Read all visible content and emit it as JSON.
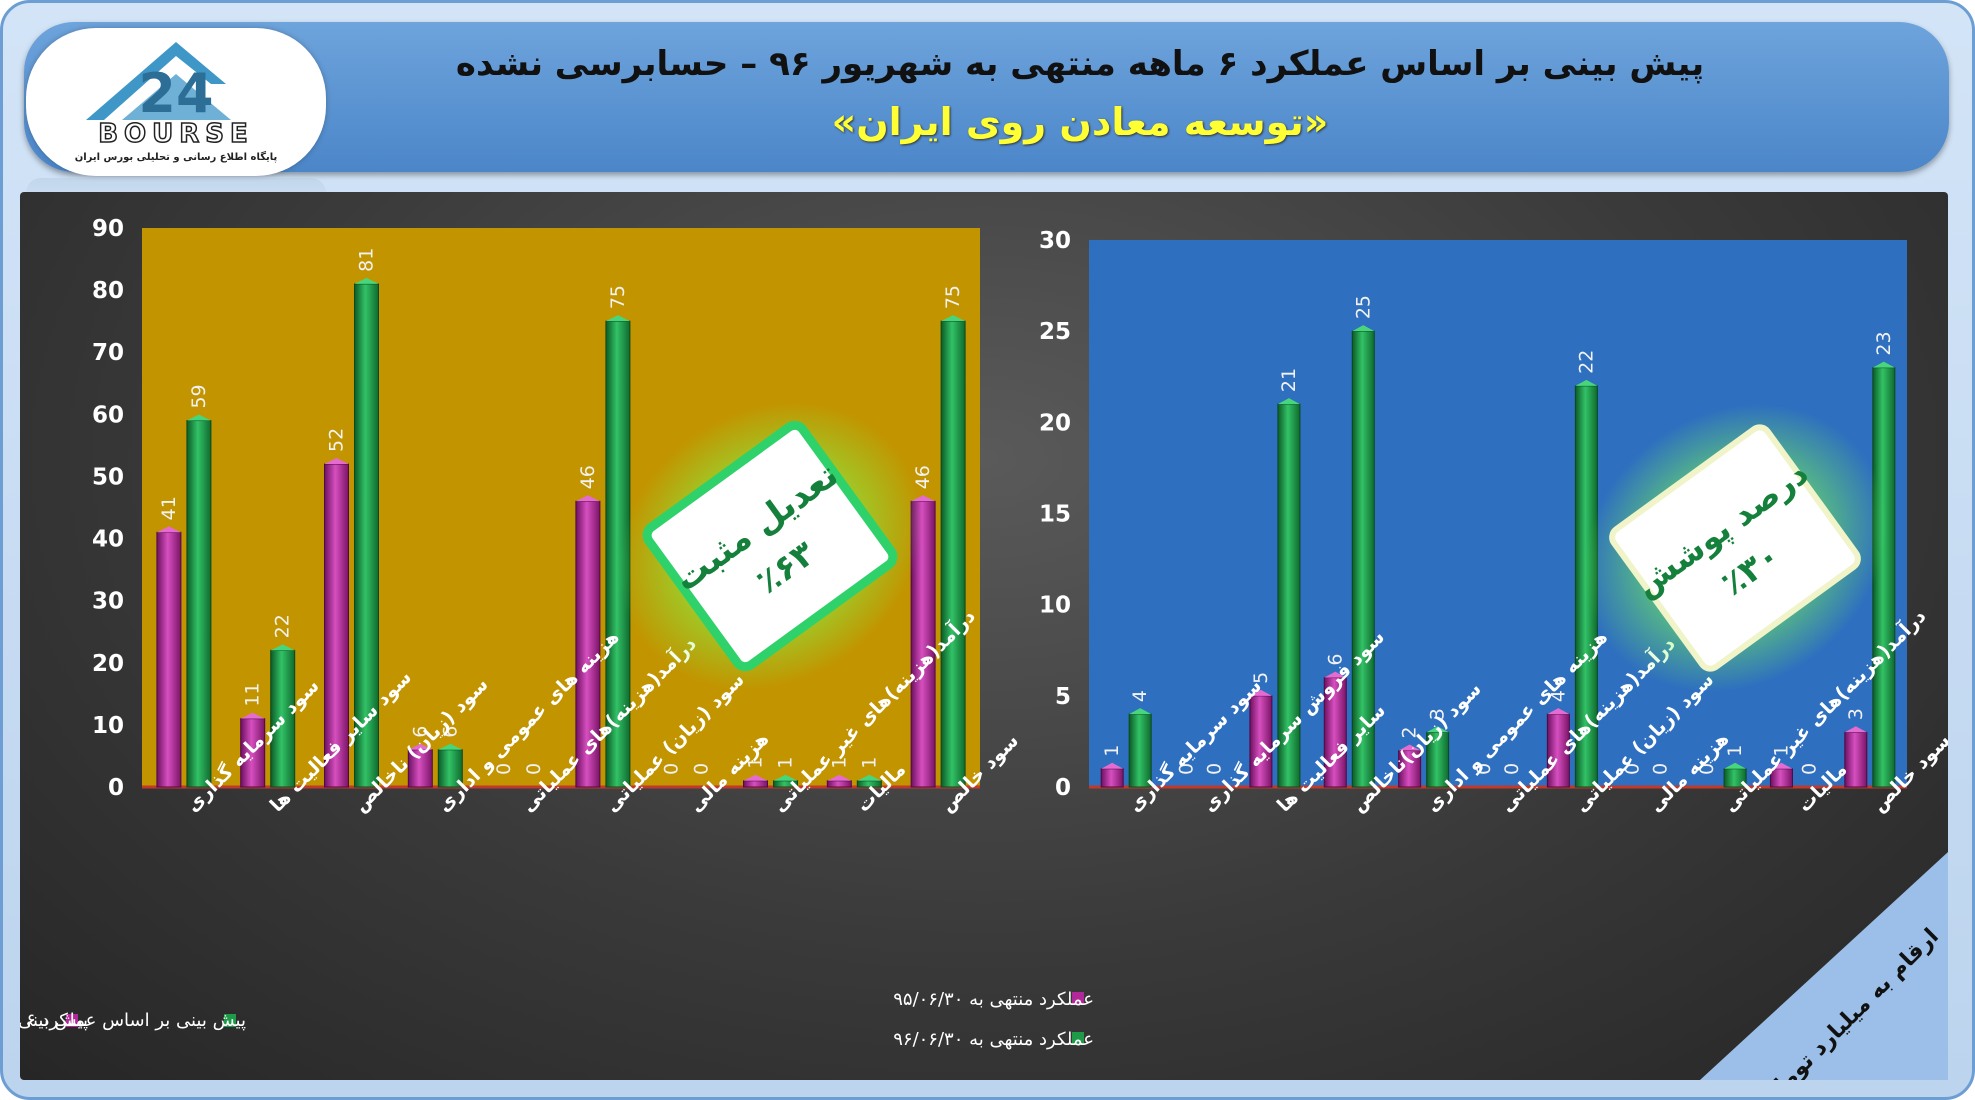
{
  "header": {
    "title_line1": "پیش بینی بر اساس عملکرد ۶ ماهه منتهی به شهریور ۹۶ – حسابرسی نشده",
    "title_line2": "«توسعه معادن روی ایران»",
    "logo_text": "BOURSE",
    "logo_number": "24",
    "logo_subtitle": "پایگاه اطلاع رسانی و تحلیلی بورس ایران"
  },
  "badges": {
    "left": {
      "line1": "تعدیل مثبت",
      "line2": "٪۶۳"
    },
    "right": {
      "line1": "درصد پوشش",
      "line2": "٪۳۰"
    }
  },
  "corner_note": "ارقام به میلیارد تومان",
  "colors": {
    "series_prev": "#b0289a",
    "series_curr": "#1e9a48",
    "left_plot_bg": "#c29400",
    "right_plot_bg": "#2e6fbf",
    "axis_red": "#c0392b",
    "badge_green": "#2fd16a"
  },
  "chart_data": [
    {
      "type": "bar",
      "ylim": [
        0,
        90
      ],
      "yticks": [
        0,
        10,
        20,
        30,
        40,
        50,
        60,
        70,
        80,
        90
      ],
      "grid": false,
      "legend_position": "bottom",
      "categories": [
        "سود سرمایه گذاری",
        "سود سایر فعالیت ها",
        "سود (زیان) ناخالص",
        "هزینه های عمومی و اداری",
        "درآمد(هزینه)های عملیاتی",
        "سود (زیان) عملیاتی",
        "هزینه مالی",
        "درآمد(هزینه)های غیر عملیاتی",
        "مالیات",
        "سود خالص"
      ],
      "series": [
        {
          "name": "پیش بینی قبلی",
          "values": [
            41,
            11,
            52,
            6,
            0,
            46,
            0,
            1,
            1,
            46
          ]
        },
        {
          "name": "پیش بینی بر اساس عملکرد ۶ ماهه",
          "values": [
            59,
            22,
            81,
            6,
            0,
            75,
            0,
            1,
            1,
            75
          ]
        }
      ]
    },
    {
      "type": "bar",
      "ylim": [
        0,
        30
      ],
      "yticks": [
        0,
        5,
        10,
        15,
        20,
        25,
        30
      ],
      "grid": false,
      "legend_position": "bottom",
      "categories": [
        "سود سرمایه گذاری",
        "سود فروش سرمایه گذاری",
        "سایر فعالیت ها",
        "سود (زیان)ناخالص",
        "هزینه های عمومی و اداری",
        "درآمد(هزینه)های عملیاتی",
        "سود (زیان) عملیاتی",
        "هزینه مالی",
        "درآمد(هزینه)های غیر عملیاتی",
        "مالیات",
        "سود خالص"
      ],
      "series": [
        {
          "name": "عملکرد منتهی به ۹۵/۰۶/۳۰",
          "values": [
            1,
            0,
            5,
            6,
            2,
            0,
            4,
            0,
            0,
            1,
            3
          ]
        },
        {
          "name": "عملکرد منتهی به ۹۶/۰۶/۳۰",
          "values": [
            4,
            0,
            21,
            25,
            3,
            0,
            22,
            0,
            1,
            0,
            23
          ]
        }
      ]
    }
  ]
}
